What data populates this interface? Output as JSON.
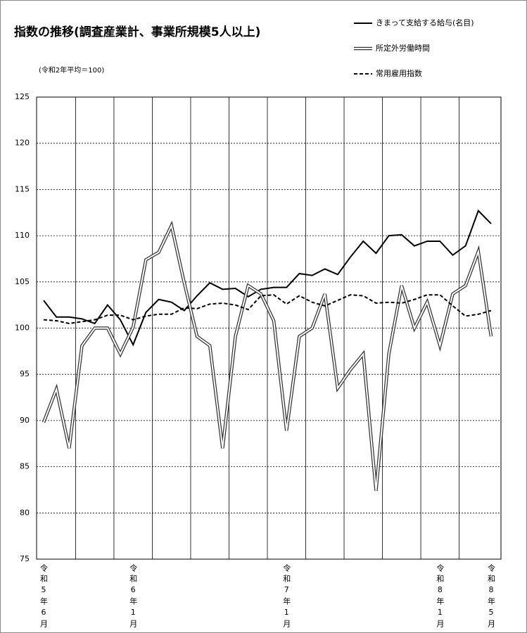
{
  "chart_data": {
    "type": "line",
    "title": "指数の推移(調査産業計、事業所規模5人以上)",
    "subtitle": "(令和2年平均＝100)",
    "categories": [
      "令和5年6月",
      null,
      null,
      null,
      null,
      null,
      null,
      "令和6年1月",
      null,
      null,
      null,
      null,
      null,
      null,
      null,
      null,
      null,
      null,
      null,
      "令和7年1月",
      null,
      null,
      null,
      null,
      null,
      null,
      null,
      null,
      null,
      null,
      null,
      "令和8年1月",
      null,
      null,
      null,
      "令和8年5月"
    ],
    "series": [
      {
        "name": "きまって支給する給与(名目)",
        "color": "#000000",
        "style": "solid",
        "values": [
          103.0,
          101.2,
          101.2,
          101.0,
          100.5,
          102.5,
          100.9,
          98.2,
          101.7,
          103.1,
          102.8,
          101.9,
          103.5,
          104.9,
          104.2,
          104.3,
          103.4,
          104.2,
          104.4,
          104.4,
          105.9,
          105.7,
          106.4,
          105.8,
          107.7,
          109.4,
          108.1,
          110.0,
          110.1,
          108.9,
          109.4,
          109.4,
          107.9,
          108.9,
          112.7,
          111.3
        ]
      },
      {
        "name": "所定外労働時間",
        "color": "#333333",
        "style": "double",
        "values": [
          89.8,
          93.4,
          87.0,
          98.1,
          100.0,
          100.0,
          97.2,
          100.1,
          107.4,
          108.2,
          111.1,
          104.9,
          99.1,
          98.1,
          87.0,
          99.1,
          104.6,
          103.7,
          100.8,
          88.9,
          99.1,
          100.0,
          103.7,
          93.5,
          95.5,
          97.2,
          82.4,
          97.2,
          104.6,
          100.0,
          102.8,
          98.1,
          103.7,
          104.6,
          108.3,
          99.1
        ]
      },
      {
        "name": "常用雇用指数",
        "color": "#000000",
        "style": "dashed",
        "values": [
          100.9,
          100.8,
          100.5,
          100.7,
          100.9,
          101.4,
          101.4,
          100.9,
          101.3,
          101.5,
          101.5,
          102.2,
          102.1,
          102.6,
          102.7,
          102.5,
          102.0,
          103.5,
          103.6,
          102.6,
          103.5,
          102.8,
          102.4,
          103.0,
          103.6,
          103.5,
          102.7,
          102.8,
          102.7,
          103.1,
          103.6,
          103.6,
          102.4,
          101.3,
          101.5,
          101.9
        ]
      }
    ],
    "ylim": [
      75,
      125
    ],
    "yticks": [
      75,
      80,
      85,
      90,
      95,
      100,
      105,
      110,
      115,
      120,
      125
    ],
    "grid": true,
    "legend": "top-right"
  }
}
